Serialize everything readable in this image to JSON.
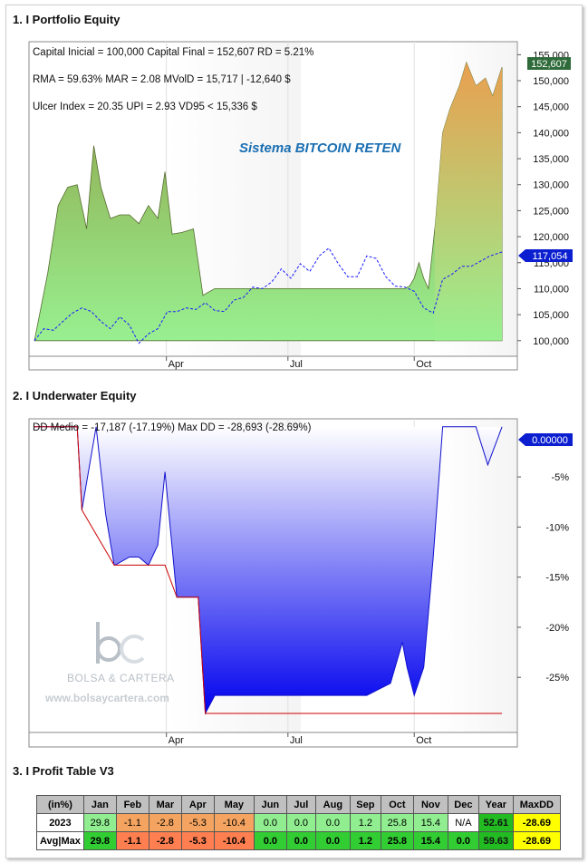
{
  "sections": {
    "equity_title": "1. I Portfolio Equity",
    "underwater_title": "2. I Underwater Equity",
    "profit_title": "3. I Profit Table V3"
  },
  "equity": {
    "stats_line1": "Capital Inicial = 100,000  Capital Final = 152,607   RD = 5.21%",
    "stats_line2": "RMA = 59.63%   MAR = 2.08   MVolD = 15,717 | -12,640 $",
    "stats_line3": "Ulcer Index = 20.35   UPI = 2.93   VD95 < 15,336 $",
    "system_name": "Sistema BITCOIN RETEN",
    "last_value_label": "152,607",
    "benchmark_label": "117,054",
    "colors": {
      "area_top": "#9fb550",
      "area_bottom": "#98ee90",
      "area_top_recent": "#e8a050",
      "benchmark": "#1a1aff",
      "last_badge": "#2f6b3a",
      "bench_badge": "#0b1fd0"
    }
  },
  "underwater": {
    "stats": "DD Medio = -17,187 (-17.19%)       Max DD = -28,693 (-28.69%)",
    "current_label": "0.00000",
    "watermark_text": "BOLSA & CARTERA",
    "watermark_url": "www.bolsaycartera.com"
  },
  "chart_data": [
    {
      "type": "area",
      "title": "",
      "xlabel": "",
      "ylabel": "",
      "ylim": [
        97000,
        157500
      ],
      "y_ticks": [
        "100,000",
        "105,000",
        "110,000",
        "115,000",
        "120,000",
        "125,000",
        "130,000",
        "135,000",
        "140,000",
        "145,000",
        "150,000",
        "155,000"
      ],
      "y_tick_values": [
        100000,
        105000,
        110000,
        115000,
        120000,
        125000,
        130000,
        135000,
        140000,
        145000,
        150000,
        155000
      ],
      "x_ticks": [
        "Apr",
        "Jul",
        "Oct"
      ],
      "x_tick_positions": [
        0.278,
        0.534,
        0.8
      ],
      "series": [
        {
          "x": [
            0,
            0.028,
            0.05,
            0.07,
            0.09,
            0.11,
            0.125,
            0.14,
            0.16,
            0.18,
            0.2,
            0.22,
            0.24,
            0.26,
            0.275,
            0.29,
            0.31,
            0.335,
            0.355,
            0.36,
            0.38,
            0.4,
            0.42,
            0.44,
            0.78,
            0.79,
            0.8,
            0.81,
            0.82,
            0.83,
            0.845,
            0.86,
            0.875,
            0.895,
            0.91,
            0.93,
            0.95,
            0.965,
            0.985
          ],
          "values": [
            100000,
            113000,
            126000,
            129500,
            130000,
            121500,
            137500,
            129500,
            123500,
            124200,
            124200,
            122500,
            126000,
            123500,
            132500,
            120500,
            120800,
            121500,
            108700,
            109000,
            110000,
            110000,
            110000,
            110000,
            110000,
            110500,
            112000,
            115000,
            112000,
            110000,
            123000,
            140000,
            144500,
            149000,
            153500,
            149000,
            150500,
            147000,
            152607
          ]
        },
        {
          "name": "",
          "x": [
            0,
            0.02,
            0.04,
            0.06,
            0.08,
            0.1,
            0.12,
            0.14,
            0.16,
            0.18,
            0.2,
            0.22,
            0.24,
            0.26,
            0.28,
            0.3,
            0.32,
            0.34,
            0.36,
            0.38,
            0.4,
            0.42,
            0.44,
            0.46,
            0.48,
            0.5,
            0.52,
            0.54,
            0.56,
            0.58,
            0.6,
            0.62,
            0.64,
            0.66,
            0.68,
            0.7,
            0.72,
            0.74,
            0.76,
            0.78,
            0.8,
            0.82,
            0.84,
            0.86,
            0.88,
            0.9,
            0.92,
            0.94,
            0.96,
            0.985
          ],
          "values": [
            100000,
            102300,
            102000,
            103700,
            105300,
            106300,
            105600,
            103700,
            102300,
            104600,
            103000,
            99500,
            101300,
            102300,
            105600,
            105600,
            106300,
            106000,
            107300,
            105800,
            105600,
            107800,
            108300,
            110300,
            110000,
            111300,
            113800,
            112000,
            114800,
            113300,
            116300,
            117800,
            114800,
            112300,
            112300,
            116300,
            115800,
            112300,
            110500,
            110300,
            109500,
            106300,
            105300,
            111800,
            112800,
            114300,
            114300,
            115300,
            116300,
            117054
          ]
        }
      ]
    },
    {
      "type": "area",
      "title": "",
      "xlabel": "",
      "ylabel": "",
      "ylim": [
        -30.5,
        0.8
      ],
      "y_ticks": [
        "0.00000",
        "-5%",
        "-10%",
        "-15%",
        "-20%",
        "-25%"
      ],
      "y_tick_values": [
        0,
        -5,
        -10,
        -15,
        -20,
        -25
      ],
      "x_ticks": [
        "Apr",
        "Jul",
        "Oct"
      ],
      "x_tick_positions": [
        0.278,
        0.534,
        0.8
      ],
      "series": [
        {
          "x": [
            0,
            0.09,
            0.1,
            0.13,
            0.15,
            0.168,
            0.17,
            0.2,
            0.22,
            0.24,
            0.26,
            0.275,
            0.3,
            0.345,
            0.36,
            0.38,
            0.4,
            0.44,
            0.7,
            0.75,
            0.775,
            0.785,
            0.8,
            0.82,
            0.84,
            0.86,
            0.88,
            0.91,
            0.93,
            0.955,
            0.985
          ],
          "values": [
            0,
            0,
            -8.3,
            0,
            -8.7,
            -13.8,
            -13.8,
            -13.0,
            -13.0,
            -13.8,
            -11.8,
            -4.5,
            -17.0,
            -17.0,
            -28.6,
            -26.8,
            -26.8,
            -26.8,
            -26.8,
            -25.6,
            -21.5,
            -24.0,
            -26.8,
            -24.0,
            -13.0,
            0,
            0,
            0,
            0,
            -3.8,
            0
          ]
        },
        {
          "x": [
            0,
            0.09,
            0.1,
            0.168,
            0.17,
            0.275,
            0.3,
            0.345,
            0.36,
            0.985
          ],
          "values": [
            0,
            0,
            -8.3,
            -13.8,
            -13.8,
            -13.8,
            -17.0,
            -17.0,
            -28.6,
            -28.6
          ]
        }
      ]
    },
    {
      "type": "table",
      "columns": [
        "(in%)",
        "Jan",
        "Feb",
        "Mar",
        "Apr",
        "May",
        "Jun",
        "Jul",
        "Aug",
        "Sep",
        "Oct",
        "Nov",
        "Dec",
        "Year",
        "MaxDD"
      ],
      "rows": [
        {
          "label": "2023",
          "cells": [
            "29.8",
            "-1.1",
            "-2.8",
            "-5.3",
            "-10.4",
            "0.0",
            "0.0",
            "0.0",
            "1.2",
            "25.8",
            "15.4",
            "N/A",
            "52.61",
            "-28.69"
          ],
          "classes": [
            "c-lgreen",
            "c-orange",
            "c-orange",
            "c-orange",
            "c-orange",
            "c-lgreen",
            "c-lgreen",
            "c-lgreen",
            "c-lgreen",
            "c-lgreen",
            "c-lgreen",
            "c-white",
            "c-bgreen",
            "c-yellow"
          ]
        },
        {
          "label": "Avg|Max",
          "cells": [
            "29.8",
            "-1.1",
            "-2.8",
            "-5.3",
            "-10.4",
            "0.0",
            "0.0",
            "0.0",
            "1.2",
            "25.8",
            "15.4",
            "0.0",
            "59.63",
            "-28.69"
          ],
          "classes": [
            "c-green bold",
            "c-dorange bold",
            "c-dorange bold",
            "c-dorange bold",
            "c-dorange bold",
            "c-green bold",
            "c-green bold",
            "c-green bold",
            "c-green bold",
            "c-green bold",
            "c-green bold",
            "c-green bold",
            "c-bgreen",
            "c-yellow"
          ]
        }
      ]
    }
  ]
}
